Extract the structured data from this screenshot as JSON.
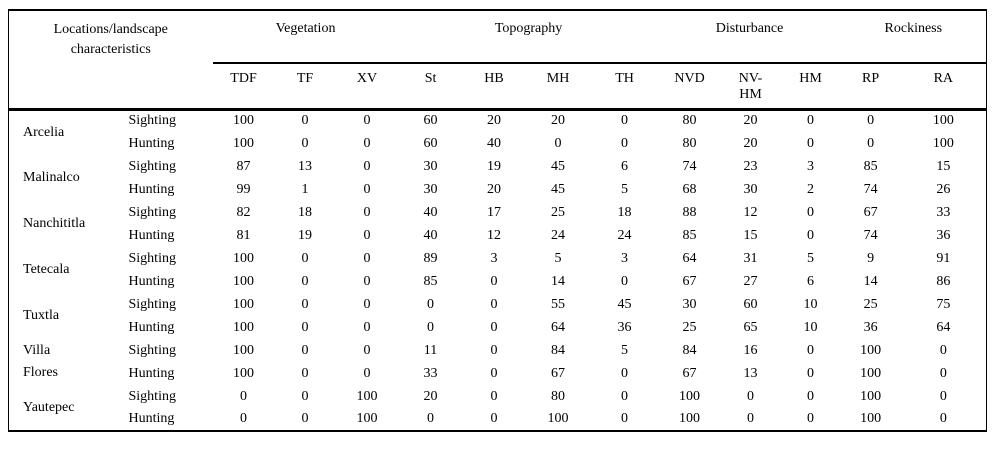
{
  "table": {
    "corner_header": "Locations/landscape\ncharacteristics",
    "groups": [
      {
        "label": "Vegetation",
        "span": 3
      },
      {
        "label": "Topography",
        "span": 4
      },
      {
        "label": "Disturbance",
        "span": 3
      },
      {
        "label": "Rockiness",
        "span": 2
      }
    ],
    "columns": [
      "TDF",
      "TF",
      "XV",
      "St",
      "HB",
      "MH",
      "TH",
      "NVD",
      "NV-\nHM",
      "HM",
      "RP",
      "RA"
    ],
    "rows": [
      {
        "location": "Arcelia",
        "records": [
          {
            "type": "Sighting",
            "values": [
              100,
              0,
              0,
              60,
              20,
              20,
              0,
              80,
              20,
              0,
              0,
              100
            ]
          },
          {
            "type": "Hunting",
            "values": [
              100,
              0,
              0,
              60,
              40,
              0,
              0,
              80,
              20,
              0,
              0,
              100
            ]
          }
        ]
      },
      {
        "location": "Malinalco",
        "records": [
          {
            "type": "Sighting",
            "values": [
              87,
              13,
              0,
              30,
              19,
              45,
              6,
              74,
              23,
              3,
              85,
              15
            ]
          },
          {
            "type": "Hunting",
            "values": [
              99,
              1,
              0,
              30,
              20,
              45,
              5,
              68,
              30,
              2,
              74,
              26
            ]
          }
        ]
      },
      {
        "location": "Nanchititla",
        "records": [
          {
            "type": "Sighting",
            "values": [
              82,
              18,
              0,
              40,
              17,
              25,
              18,
              88,
              12,
              0,
              67,
              33
            ]
          },
          {
            "type": "Hunting",
            "values": [
              81,
              19,
              0,
              40,
              12,
              24,
              24,
              85,
              15,
              0,
              74,
              36
            ]
          }
        ]
      },
      {
        "location": "Tetecala",
        "records": [
          {
            "type": "Sighting",
            "values": [
              100,
              0,
              0,
              89,
              3,
              5,
              3,
              64,
              31,
              5,
              9,
              91
            ]
          },
          {
            "type": "Hunting",
            "values": [
              100,
              0,
              0,
              85,
              0,
              14,
              0,
              67,
              27,
              6,
              14,
              86
            ]
          }
        ]
      },
      {
        "location": "Tuxtla",
        "records": [
          {
            "type": "Sighting",
            "values": [
              100,
              0,
              0,
              0,
              0,
              55,
              45,
              30,
              60,
              10,
              25,
              75
            ]
          },
          {
            "type": "Hunting",
            "values": [
              100,
              0,
              0,
              0,
              0,
              64,
              36,
              25,
              65,
              10,
              36,
              64
            ]
          }
        ]
      },
      {
        "location": "Villa\nFlores",
        "records": [
          {
            "type": "Sighting",
            "values": [
              100,
              0,
              0,
              11,
              0,
              84,
              5,
              84,
              16,
              0,
              100,
              0
            ]
          },
          {
            "type": "Hunting",
            "values": [
              100,
              0,
              0,
              33,
              0,
              67,
              0,
              67,
              13,
              0,
              100,
              0
            ]
          }
        ]
      },
      {
        "location": "Yautepec",
        "records": [
          {
            "type": "Sighting",
            "values": [
              0,
              0,
              100,
              20,
              0,
              80,
              0,
              100,
              0,
              0,
              100,
              0
            ]
          },
          {
            "type": "Hunting",
            "values": [
              0,
              0,
              100,
              0,
              0,
              100,
              0,
              100,
              0,
              0,
              100,
              0
            ]
          }
        ]
      }
    ]
  }
}
